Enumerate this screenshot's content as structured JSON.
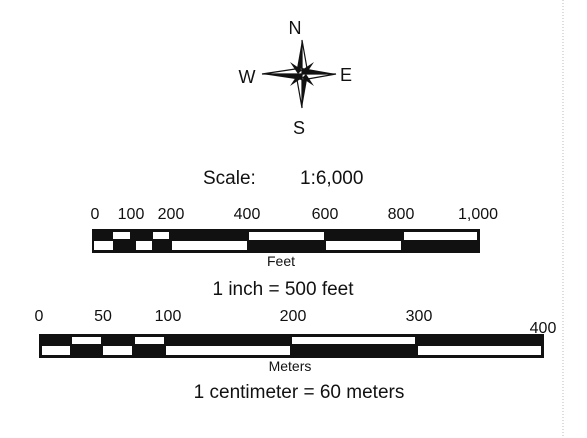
{
  "compass": {
    "north": "N",
    "south": "S",
    "east": "E",
    "west": "W",
    "icon": "compass-rose-icon"
  },
  "scale": {
    "label": "Scale:",
    "ratio": "1:6,000"
  },
  "feet_bar": {
    "tick_labels": [
      "0",
      "100",
      "200",
      "400",
      "600",
      "800",
      "1,000"
    ],
    "unit_label": "Feet",
    "equivalence": "1 inch = 500 feet"
  },
  "meters_bar": {
    "tick_labels": [
      "0",
      "50",
      "100",
      "200",
      "300",
      "400"
    ],
    "unit_label": "Meters",
    "equivalence": "1 centimeter = 60 meters"
  },
  "colors": {
    "ink": "#111111",
    "paper": "#ffffff",
    "border": "#bbbbbb"
  }
}
